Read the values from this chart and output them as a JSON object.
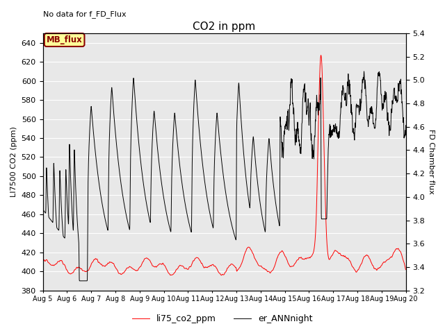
{
  "title": "CO2 in ppm",
  "top_left_text": "No data for f_FD_Flux",
  "ylabel_left": "LI7500 CO2 (ppm)",
  "ylabel_right": "FD Chamber flux",
  "ylim_left": [
    380,
    650
  ],
  "ylim_right": [
    3.2,
    5.4
  ],
  "yticks_left": [
    380,
    400,
    420,
    440,
    460,
    480,
    500,
    520,
    540,
    560,
    580,
    600,
    620,
    640
  ],
  "yticks_right": [
    3.2,
    3.4,
    3.6,
    3.8,
    4.0,
    4.2,
    4.4,
    4.6,
    4.8,
    5.0,
    5.2,
    5.4
  ],
  "xtick_labels": [
    "Aug 5",
    "Aug 6",
    "Aug 7",
    "Aug 8",
    "Aug 9",
    "Aug 10",
    "Aug 11",
    "Aug 12",
    "Aug 13",
    "Aug 14",
    "Aug 15",
    "Aug 16",
    "Aug 17",
    "Aug 18",
    "Aug 19",
    "Aug 20"
  ],
  "red_line_color": "#FF0000",
  "black_line_color": "#000000",
  "legend_red_label": "li75_co2_ppm",
  "legend_black_label": "er_ANNnight",
  "annotation_text": "MB_flux",
  "annotation_box_color": "#FFFF99",
  "annotation_box_edge": "#8B0000",
  "background_color": "#FFFFFF",
  "shading_color": "#E8E8E8",
  "grid_color": "#FFFFFF",
  "font_size_title": 11,
  "font_size_axis": 8,
  "font_size_tick": 8,
  "font_size_legend": 9,
  "n_points": 5000
}
